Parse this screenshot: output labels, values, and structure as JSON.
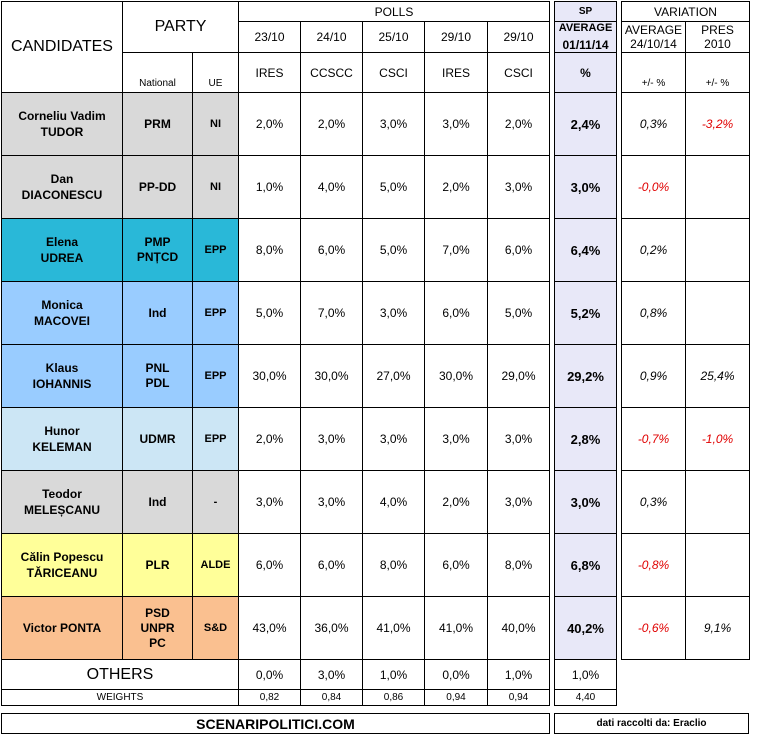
{
  "header": {
    "candidates_label": "CANDIDATES",
    "party_label": "PARTY",
    "national_label": "National",
    "ue_label": "UE",
    "polls_label": "POLLS",
    "poll_dates": [
      "23/10",
      "24/10",
      "25/10",
      "29/10",
      "29/10"
    ],
    "poll_sources": [
      "IRES",
      "CCSCC",
      "CSCI",
      "IRES",
      "CSCI"
    ],
    "sp_label": "SP",
    "average_label": "AVERAGE",
    "avg_date": "01/11/14",
    "pct_label": "%",
    "variation_label": "VARIATION",
    "var_avg_label": "AVERAGE",
    "var_avg_date": "24/10/14",
    "var_pres_label": "PRES",
    "var_pres_year": "2010",
    "plusminus_1": "+/- %",
    "plusminus_2": "+/- %"
  },
  "rows": [
    {
      "name1": "Corneliu Vadim",
      "name2": "TUDOR",
      "party1": "PRM",
      "party2": "",
      "party3": "",
      "ue": "NI",
      "polls": [
        "2,0%",
        "2,0%",
        "3,0%",
        "3,0%",
        "2,0%"
      ],
      "avg": "2,4%",
      "var_avg": "0,3%",
      "var_avg_neg": false,
      "var_pres": "-3,2%",
      "var_pres_neg": true,
      "color": "#d9d9d9"
    },
    {
      "name1": "Dan",
      "name2": "DIACONESCU",
      "party1": "PP-DD",
      "party2": "",
      "party3": "",
      "ue": "NI",
      "polls": [
        "1,0%",
        "4,0%",
        "5,0%",
        "2,0%",
        "3,0%"
      ],
      "avg": "3,0%",
      "var_avg": "-0,0%",
      "var_avg_neg": true,
      "var_pres": "",
      "var_pres_neg": false,
      "color": "#d9d9d9"
    },
    {
      "name1": "Elena",
      "name2": "UDREA",
      "party1": "PMP",
      "party2": "PNȚCD",
      "party3": "",
      "ue": "EPP",
      "polls": [
        "8,0%",
        "6,0%",
        "5,0%",
        "7,0%",
        "6,0%"
      ],
      "avg": "6,4%",
      "var_avg": "0,2%",
      "var_avg_neg": false,
      "var_pres": "",
      "var_pres_neg": false,
      "color": "#29b8d8"
    },
    {
      "name1": "Monica",
      "name2": "MACOVEI",
      "party1": "Ind",
      "party2": "",
      "party3": "",
      "ue": "EPP",
      "polls": [
        "5,0%",
        "7,0%",
        "3,0%",
        "6,0%",
        "5,0%"
      ],
      "avg": "5,2%",
      "var_avg": "0,8%",
      "var_avg_neg": false,
      "var_pres": "",
      "var_pres_neg": false,
      "color": "#99ccff"
    },
    {
      "name1": "Klaus",
      "name2": "IOHANNIS",
      "party1": "PNL",
      "party2": "PDL",
      "party3": "",
      "ue": "EPP",
      "polls": [
        "30,0%",
        "30,0%",
        "27,0%",
        "30,0%",
        "29,0%"
      ],
      "avg": "29,2%",
      "var_avg": "0,9%",
      "var_avg_neg": false,
      "var_pres": "25,4%",
      "var_pres_neg": false,
      "color": "#99ccff"
    },
    {
      "name1": "Hunor",
      "name2": "KELEMAN",
      "party1": "UDMR",
      "party2": "",
      "party3": "",
      "ue": "EPP",
      "polls": [
        "2,0%",
        "3,0%",
        "3,0%",
        "3,0%",
        "3,0%"
      ],
      "avg": "2,8%",
      "var_avg": "-0,7%",
      "var_avg_neg": true,
      "var_pres": "-1,0%",
      "var_pres_neg": true,
      "color": "#cce6f5"
    },
    {
      "name1": "Teodor",
      "name2": "MELEȘCANU",
      "party1": "Ind",
      "party2": "",
      "party3": "",
      "ue": "-",
      "polls": [
        "3,0%",
        "3,0%",
        "4,0%",
        "2,0%",
        "3,0%"
      ],
      "avg": "3,0%",
      "var_avg": "0,3%",
      "var_avg_neg": false,
      "var_pres": "",
      "var_pres_neg": false,
      "color": "#d9d9d9"
    },
    {
      "name1": "Călin Popescu",
      "name2": "TĂRICEANU",
      "party1": "PLR",
      "party2": "",
      "party3": "",
      "ue": "ALDE",
      "polls": [
        "6,0%",
        "6,0%",
        "8,0%",
        "6,0%",
        "8,0%"
      ],
      "avg": "6,8%",
      "var_avg": "-0,8%",
      "var_avg_neg": true,
      "var_pres": "",
      "var_pres_neg": false,
      "color": "#ffff99"
    },
    {
      "name1": "Victor PONTA",
      "name2": "",
      "party1": "PSD",
      "party2": "UNPR",
      "party3": "PC",
      "ue": "S&D",
      "polls": [
        "43,0%",
        "36,0%",
        "41,0%",
        "41,0%",
        "40,0%"
      ],
      "avg": "40,2%",
      "var_avg": "-0,6%",
      "var_avg_neg": true,
      "var_pres": "9,1%",
      "var_pres_neg": false,
      "color": "#fac090"
    }
  ],
  "others": {
    "label": "OTHERS",
    "polls": [
      "0,0%",
      "3,0%",
      "1,0%",
      "0,0%",
      "1,0%"
    ],
    "avg": "1,0%",
    "weights_label": "WEIGHTS",
    "weights": [
      "0,82",
      "0,84",
      "0,86",
      "0,94",
      "0,94"
    ],
    "weights_total": "4,40"
  },
  "footer": {
    "site": "SCENARIPOLITICI.COM",
    "credit": "dati raccolti da: Eraclio"
  }
}
